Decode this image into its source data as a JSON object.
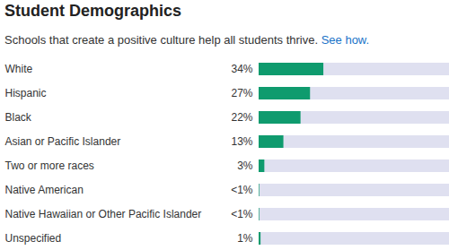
{
  "chart_data": {
    "type": "bar",
    "title": "Student Demographics",
    "subtitle": "Schools that create a positive culture help all students thrive.",
    "subtitle_link": "See how.",
    "orientation": "horizontal",
    "categories": [
      "White",
      "Hispanic",
      "Black",
      "Asian or Pacific Islander",
      "Two or more races",
      "Native American",
      "Native Hawaiian or Other Pacific Islander",
      "Unspecified"
    ],
    "values": [
      34,
      27,
      22,
      13,
      3,
      0.3,
      0.3,
      1
    ],
    "value_labels": [
      "34%",
      "27%",
      "22%",
      "13%",
      "3%",
      "<1%",
      "<1%",
      "1%"
    ],
    "data_labels": true,
    "tick_labels": "y",
    "color": "#0f9b6e",
    "xlim": [
      0,
      100
    ]
  }
}
